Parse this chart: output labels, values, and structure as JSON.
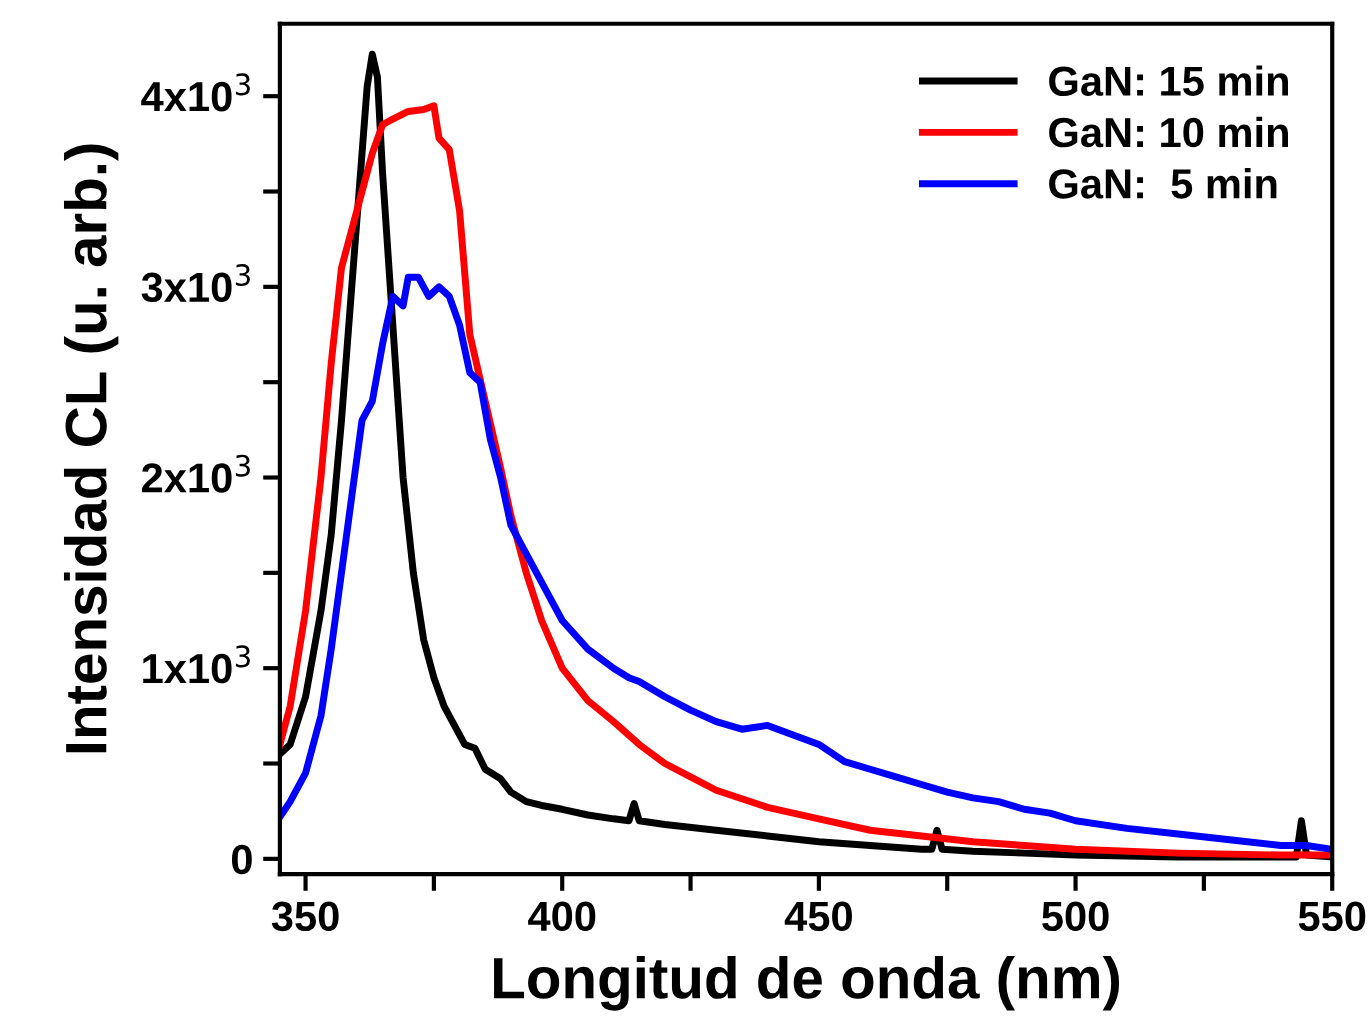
{
  "chart_data": {
    "type": "line",
    "xlabel": "Longitud de onda (nm)",
    "ylabel": "Intensidad CL (u. arb.)",
    "xlim": [
      345,
      550
    ],
    "ylim": [
      -80,
      4380
    ],
    "xticks": [
      350,
      {
        "value": 375,
        "label": null
      },
      400,
      {
        "value": 425,
        "label": null
      },
      450,
      {
        "value": 475,
        "label": null
      },
      500,
      {
        "value": 525,
        "label": null
      },
      550
    ],
    "yticks": [
      0,
      {
        "value": 500,
        "label": null
      },
      {
        "value": 1000,
        "label": "1x10$^{3}$"
      },
      {
        "value": 1500,
        "label": null
      },
      {
        "value": 2000,
        "label": "2x10$^{3}$"
      },
      {
        "value": 2500,
        "label": null
      },
      {
        "value": 3000,
        "label": "3x10$^{3}$"
      },
      {
        "value": 3500,
        "label": null
      },
      {
        "value": 4000,
        "label": "4x10$^{3}$"
      }
    ],
    "grid": false,
    "legend": "top right",
    "marker": "none",
    "line_style": "solid",
    "series": [
      {
        "name": "GaN: 15 min",
        "color": "#000000",
        "x": [
          345,
          347,
          350,
          353,
          355,
          357,
          359,
          361,
          362,
          363,
          364,
          365,
          367,
          369,
          371,
          373,
          375,
          377,
          379,
          381,
          383,
          385,
          388,
          390,
          393,
          396,
          400,
          405,
          410,
          413,
          414,
          415,
          420,
          430,
          440,
          450,
          460,
          470,
          472,
          473,
          474,
          480,
          490,
          500,
          520,
          540,
          543,
          544,
          545,
          550
        ],
        "values": [
          550,
          600,
          850,
          1300,
          1700,
          2300,
          3000,
          3700,
          4050,
          4220,
          4100,
          3600,
          2800,
          2000,
          1500,
          1150,
          950,
          800,
          700,
          600,
          580,
          470,
          420,
          350,
          300,
          280,
          260,
          230,
          210,
          200,
          290,
          200,
          180,
          150,
          120,
          90,
          70,
          50,
          50,
          150,
          50,
          40,
          30,
          20,
          10,
          10,
          10,
          200,
          20,
          10
        ]
      },
      {
        "name": "GaN: 10 min",
        "color": "#ff0000",
        "x": [
          345,
          347,
          350,
          353,
          355,
          357,
          359,
          361,
          363,
          365,
          367,
          370,
          373,
          375,
          376,
          378,
          380,
          382,
          385,
          388,
          390,
          393,
          396,
          400,
          405,
          410,
          415,
          420,
          425,
          430,
          440,
          450,
          460,
          470,
          480,
          490,
          500,
          520,
          540,
          550
        ],
        "values": [
          600,
          800,
          1300,
          2000,
          2600,
          3100,
          3300,
          3500,
          3700,
          3850,
          3880,
          3920,
          3930,
          3950,
          3780,
          3720,
          3400,
          2750,
          2400,
          2050,
          1800,
          1500,
          1250,
          1000,
          830,
          720,
          600,
          500,
          430,
          360,
          270,
          210,
          150,
          120,
          90,
          70,
          50,
          30,
          20,
          20
        ]
      },
      {
        "name": "GaN:  5 min",
        "color": "#0000ff",
        "x": [
          345,
          347,
          350,
          353,
          355,
          357,
          359,
          361,
          363,
          365,
          367,
          369,
          370,
          372,
          374,
          376,
          378,
          380,
          382,
          384,
          386,
          388,
          390,
          393,
          396,
          400,
          405,
          410,
          413,
          415,
          420,
          425,
          430,
          435,
          440,
          445,
          450,
          455,
          460,
          465,
          470,
          475,
          480,
          485,
          490,
          495,
          500,
          510,
          520,
          530,
          540,
          545,
          550
        ],
        "values": [
          220,
          300,
          450,
          750,
          1100,
          1500,
          1900,
          2300,
          2400,
          2700,
          2950,
          2900,
          3050,
          3050,
          2950,
          3000,
          2950,
          2800,
          2550,
          2500,
          2200,
          2000,
          1750,
          1600,
          1450,
          1250,
          1100,
          1000,
          950,
          930,
          850,
          780,
          720,
          680,
          700,
          650,
          600,
          510,
          470,
          430,
          390,
          350,
          320,
          300,
          260,
          240,
          200,
          160,
          130,
          100,
          70,
          70,
          50
        ]
      }
    ]
  }
}
